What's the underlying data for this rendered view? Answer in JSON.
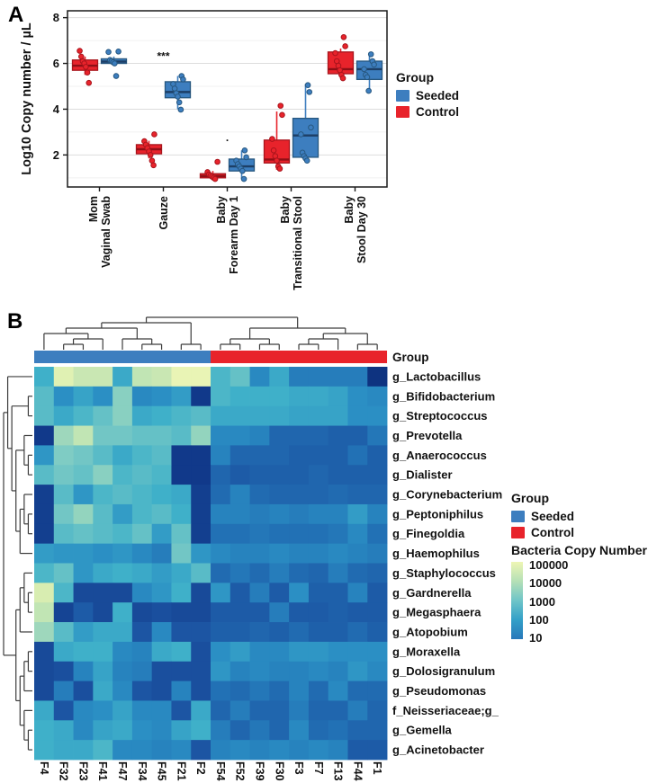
{
  "figure": {
    "panel_a_label": "A",
    "panel_b_label": "B"
  },
  "groups": {
    "title": "Group",
    "items": [
      {
        "label": "Seeded",
        "color": "#3d7ebf"
      },
      {
        "label": "Control",
        "color": "#e8232b"
      }
    ]
  },
  "colorbar": {
    "title": "Bacteria Copy Number",
    "tick_labels": [
      "100000",
      "10000",
      "1000",
      "100",
      "10"
    ],
    "gradient": [
      "#eef6b4",
      "#b5e0b6",
      "#6fc5c8",
      "#33a0c8",
      "#2778ba"
    ]
  },
  "chart_data": [
    {
      "type": "boxplot",
      "panel": "A",
      "ylabel": "Log10 Copy number / µL",
      "yticks": [
        2,
        4,
        6,
        8
      ],
      "ylim": [
        0.6,
        8.3
      ],
      "grid": "major+minor",
      "legend_position": "right",
      "categories": [
        [
          "Mom",
          "Vaginal Swab"
        ],
        [
          "Gauze"
        ],
        [
          "Baby",
          "Forearm Day 1"
        ],
        [
          "Baby",
          "Transitional Stool"
        ],
        [
          "Baby",
          "Stool Day 30"
        ]
      ],
      "series": [
        {
          "name": "Control",
          "color": "#e8232b",
          "edge": "#a8141c",
          "median": "#8f0f16",
          "offset": -16,
          "boxes": [
            {
              "whislo": 5.5,
              "q1": 5.7,
              "med": 5.9,
              "q3": 6.15,
              "whishi": 6.3,
              "points": [
                6.55,
                6.3,
                6.1,
                6.0,
                5.85,
                5.6,
                5.15
              ]
            },
            {
              "whislo": 1.85,
              "q1": 2.05,
              "med": 2.25,
              "q3": 2.45,
              "whishi": 2.62,
              "points": [
                2.9,
                2.6,
                2.45,
                2.3,
                2.15,
                2.0,
                1.75,
                1.55
              ]
            },
            {
              "whislo": 0.92,
              "q1": 1.0,
              "med": 1.08,
              "q3": 1.18,
              "whishi": 1.3,
              "points": [
                1.7,
                1.25,
                1.15,
                1.1,
                1.05,
                1.0,
                0.95
              ]
            },
            {
              "whislo": 1.35,
              "q1": 1.65,
              "med": 1.8,
              "q3": 2.65,
              "whishi": 3.9,
              "points": [
                4.15,
                3.75,
                2.7,
                2.2,
                1.95,
                1.75,
                1.5,
                1.4
              ]
            },
            {
              "whislo": 5.35,
              "q1": 5.55,
              "med": 5.75,
              "q3": 6.5,
              "whishi": 6.65,
              "points": [
                7.15,
                6.75,
                6.45,
                6.1,
                5.9,
                5.7,
                5.5,
                5.35
              ]
            }
          ]
        },
        {
          "name": "Seeded",
          "color": "#3d7ebf",
          "edge": "#27577f",
          "median": "#1d3f66",
          "offset": 16,
          "boxes": [
            {
              "whislo": 5.9,
              "q1": 6.0,
              "med": 6.08,
              "q3": 6.2,
              "whishi": 6.3,
              "points": [
                6.52,
                6.5,
                6.15,
                6.1,
                6.05,
                6.0,
                5.45
              ]
            },
            {
              "whislo": 4.0,
              "q1": 4.5,
              "med": 4.75,
              "q3": 5.2,
              "whishi": 5.45,
              "points": [
                5.45,
                5.3,
                5.1,
                4.9,
                4.7,
                4.55,
                4.3,
                3.98
              ]
            },
            {
              "whislo": 0.95,
              "q1": 1.3,
              "med": 1.5,
              "q3": 1.82,
              "whishi": 2.2,
              "points": [
                2.2,
                1.9,
                1.75,
                1.6,
                1.5,
                1.4,
                1.3,
                0.95
              ]
            },
            {
              "whislo": 1.7,
              "q1": 1.9,
              "med": 2.85,
              "q3": 3.6,
              "whishi": 5.1,
              "points": [
                5.05,
                4.75,
                3.2,
                2.9,
                2.1,
                1.95,
                1.85,
                1.75
              ]
            },
            {
              "whislo": 4.75,
              "q1": 5.3,
              "med": 5.75,
              "q3": 6.1,
              "whishi": 6.4,
              "points": [
                6.4,
                6.1,
                5.95,
                5.75,
                5.5,
                5.4,
                4.8
              ]
            }
          ]
        }
      ],
      "annotations": [
        {
          "text": "***",
          "category_index": 1,
          "y": 6.15
        },
        {
          "text": ".",
          "category_index": 2,
          "y": 2.6
        }
      ]
    },
    {
      "type": "heatmap",
      "panel": "B",
      "columns": [
        "F4",
        "F32",
        "F23",
        "F41",
        "F47",
        "F34",
        "F45",
        "F21",
        "F2",
        "F54",
        "F52",
        "F39",
        "F30",
        "F3",
        "F7",
        "F13",
        "F44",
        "F1"
      ],
      "rows": [
        "g_Lactobacillus",
        "g_Bifidobacterium",
        "g_Streptococcus",
        "g_Prevotella",
        "g_Anaerococcus",
        "g_Dialister",
        "g_Corynebacterium",
        "g_Peptoniphilus",
        "g_Finegoldia",
        "g_Haemophilus",
        "g_Staphylococcus",
        "g_Gardnerella",
        "g_Megasphaera",
        "g_Atopobium",
        "g_Moraxella",
        "g_Dolosigranulum",
        "g_Pseudomonas",
        "f_Neisseriaceae;g_",
        "g_Gemella",
        "g_Acinetobacter"
      ],
      "values_log10": [
        [
          3.0,
          4.7,
          4.3,
          4.3,
          2.9,
          4.2,
          4.3,
          4.9,
          4.9,
          3.1,
          3.3,
          2.4,
          2.9,
          2.2,
          2.2,
          2.2,
          2.2,
          0.9
        ],
        [
          3.2,
          2.5,
          2.8,
          2.5,
          3.6,
          2.4,
          2.5,
          2.7,
          1.0,
          3.1,
          3.0,
          3.0,
          3.0,
          2.9,
          2.9,
          2.8,
          2.5,
          2.4
        ],
        [
          3.2,
          2.9,
          3.1,
          3.3,
          3.6,
          2.9,
          3.0,
          3.1,
          3.2,
          2.9,
          2.9,
          2.9,
          2.9,
          2.8,
          2.8,
          2.8,
          2.5,
          2.5
        ],
        [
          1.0,
          3.8,
          4.2,
          3.4,
          3.4,
          3.3,
          3.3,
          3.2,
          3.7,
          2.4,
          2.4,
          2.3,
          1.8,
          1.8,
          1.8,
          1.7,
          1.7,
          2.1
        ],
        [
          2.6,
          3.5,
          3.4,
          3.2,
          2.9,
          3.1,
          3.2,
          1.0,
          1.0,
          2.3,
          1.8,
          1.8,
          1.8,
          1.7,
          1.7,
          1.7,
          2.0,
          1.7
        ],
        [
          3.2,
          3.4,
          3.3,
          3.6,
          3.1,
          3.2,
          3.1,
          1.0,
          1.0,
          1.8,
          1.6,
          1.7,
          1.7,
          1.7,
          1.8,
          1.7,
          1.7,
          1.7
        ],
        [
          1.1,
          3.2,
          2.6,
          3.1,
          3.2,
          3.1,
          3.0,
          2.9,
          1.1,
          1.9,
          2.3,
          1.9,
          1.8,
          1.8,
          1.8,
          1.9,
          1.8,
          1.8
        ],
        [
          1.1,
          3.4,
          3.7,
          3.2,
          2.7,
          3.1,
          3.2,
          3.0,
          1.1,
          2.3,
          2.3,
          2.2,
          2.3,
          2.2,
          2.3,
          2.3,
          2.7,
          2.3
        ],
        [
          1.1,
          3.2,
          3.3,
          3.2,
          3.1,
          3.3,
          2.7,
          3.3,
          1.1,
          2.0,
          2.0,
          2.1,
          2.0,
          2.0,
          2.0,
          2.1,
          2.4,
          2.0
        ],
        [
          2.7,
          2.6,
          2.6,
          2.5,
          2.6,
          2.4,
          2.2,
          3.4,
          2.6,
          2.4,
          2.3,
          2.3,
          2.4,
          2.3,
          2.3,
          2.4,
          2.3,
          2.2
        ],
        [
          3.1,
          3.3,
          2.6,
          2.9,
          3.0,
          2.9,
          2.7,
          2.9,
          3.2,
          1.9,
          2.1,
          1.9,
          2.2,
          1.9,
          1.8,
          2.2,
          1.9,
          1.8
        ],
        [
          4.5,
          3.1,
          1.3,
          1.3,
          1.3,
          2.4,
          2.6,
          3.0,
          1.3,
          2.6,
          1.6,
          2.2,
          1.6,
          2.5,
          1.7,
          1.7,
          2.3,
          1.6
        ],
        [
          4.2,
          1.2,
          1.6,
          1.3,
          3.0,
          1.3,
          1.4,
          1.3,
          1.3,
          1.6,
          1.6,
          1.6,
          2.2,
          1.6,
          1.6,
          1.7,
          1.6,
          1.6
        ],
        [
          3.8,
          3.2,
          2.7,
          2.9,
          2.9,
          1.5,
          2.4,
          1.5,
          1.5,
          1.7,
          1.7,
          1.8,
          1.7,
          1.9,
          1.7,
          1.7,
          1.9,
          1.7
        ],
        [
          1.3,
          2.9,
          3.0,
          3.0,
          2.4,
          2.3,
          2.9,
          3.0,
          1.4,
          2.5,
          2.7,
          2.4,
          2.4,
          2.6,
          2.6,
          2.5,
          2.5,
          2.5
        ],
        [
          1.3,
          1.4,
          2.3,
          2.8,
          2.3,
          2.2,
          1.4,
          1.4,
          1.4,
          2.6,
          2.3,
          2.4,
          2.3,
          2.3,
          2.4,
          2.3,
          2.6,
          2.4
        ],
        [
          1.3,
          2.2,
          1.4,
          2.9,
          2.4,
          1.5,
          1.4,
          2.3,
          1.4,
          2.0,
          1.9,
          2.1,
          1.9,
          2.3,
          1.9,
          2.4,
          1.9,
          1.9
        ],
        [
          2.9,
          1.5,
          2.4,
          2.5,
          2.8,
          2.4,
          2.4,
          1.5,
          2.9,
          1.8,
          2.2,
          1.8,
          1.8,
          2.2,
          1.8,
          1.8,
          2.2,
          1.8
        ],
        [
          3.0,
          2.9,
          2.4,
          2.8,
          2.9,
          2.5,
          2.4,
          2.8,
          3.0,
          2.2,
          1.8,
          2.1,
          1.8,
          2.4,
          1.9,
          2.0,
          1.8,
          1.8
        ],
        [
          3.0,
          2.9,
          2.9,
          3.1,
          2.4,
          2.4,
          2.3,
          2.4,
          1.5,
          2.3,
          2.4,
          2.3,
          2.4,
          2.3,
          2.4,
          2.3,
          1.6,
          1.6
        ]
      ],
      "group_annotation": {
        "label": "Group",
        "groups": [
          {
            "name": "Seeded",
            "color": "#3d7ebf",
            "span": 9
          },
          {
            "name": "Control",
            "color": "#e8232b",
            "span": 9
          }
        ]
      },
      "colorscale_stops": [
        [
          0.8,
          "#0b2d76"
        ],
        [
          1.0,
          "#11398a"
        ],
        [
          1.5,
          "#1c55a3"
        ],
        [
          2.0,
          "#2271b5"
        ],
        [
          2.5,
          "#2b8fc4"
        ],
        [
          3.0,
          "#3fb0c9"
        ],
        [
          3.5,
          "#7fccc4"
        ],
        [
          4.0,
          "#b2dfb6"
        ],
        [
          4.5,
          "#d8edb1"
        ],
        [
          5.0,
          "#edf6b6"
        ]
      ],
      "col_tree": [
        [
          [
            [
              "F4",
              [
                [
                  "F32",
                  "F23"
                ],
                "F41"
              ]
            ],
            [
              "F47",
              [
                "F34",
                "F45"
              ]
            ]
          ],
          [
            "F21",
            "F2"
          ]
        ],
        [
          [
            [
              "F54",
              "F52"
            ],
            [
              "F39",
              "F30"
            ]
          ],
          [
            [
              [
                "F3",
                "F7"
              ],
              "F13"
            ],
            [
              "F44",
              "F1"
            ]
          ]
        ]
      ],
      "row_tree": [
        [
          "g_Lactobacillus",
          [
            [
              "g_Bifidobacterium",
              "g_Streptococcus"
            ],
            [
              [
                "g_Prevotella",
                [
                  "g_Anaerococcus",
                  "g_Dialister"
                ]
              ],
              [
                [
                  "g_Corynebacterium",
                  [
                    "g_Peptoniphilus",
                    "g_Finegoldia"
                  ]
                ],
                "g_Haemophilus"
              ]
            ]
          ]
        ],
        [
          [
            [
              "g_Staphylococcus",
              [
                "g_Gardnerella",
                "g_Megasphaera"
              ]
            ],
            "g_Atopobium"
          ],
          [
            [
              [
                "g_Moraxella",
                "g_Dolosigranulum"
              ],
              "g_Pseudomonas"
            ],
            [
              "f_Neisseriaceae;g_",
              [
                "g_Gemella",
                "g_Acinetobacter"
              ]
            ]
          ]
        ]
      ]
    }
  ]
}
